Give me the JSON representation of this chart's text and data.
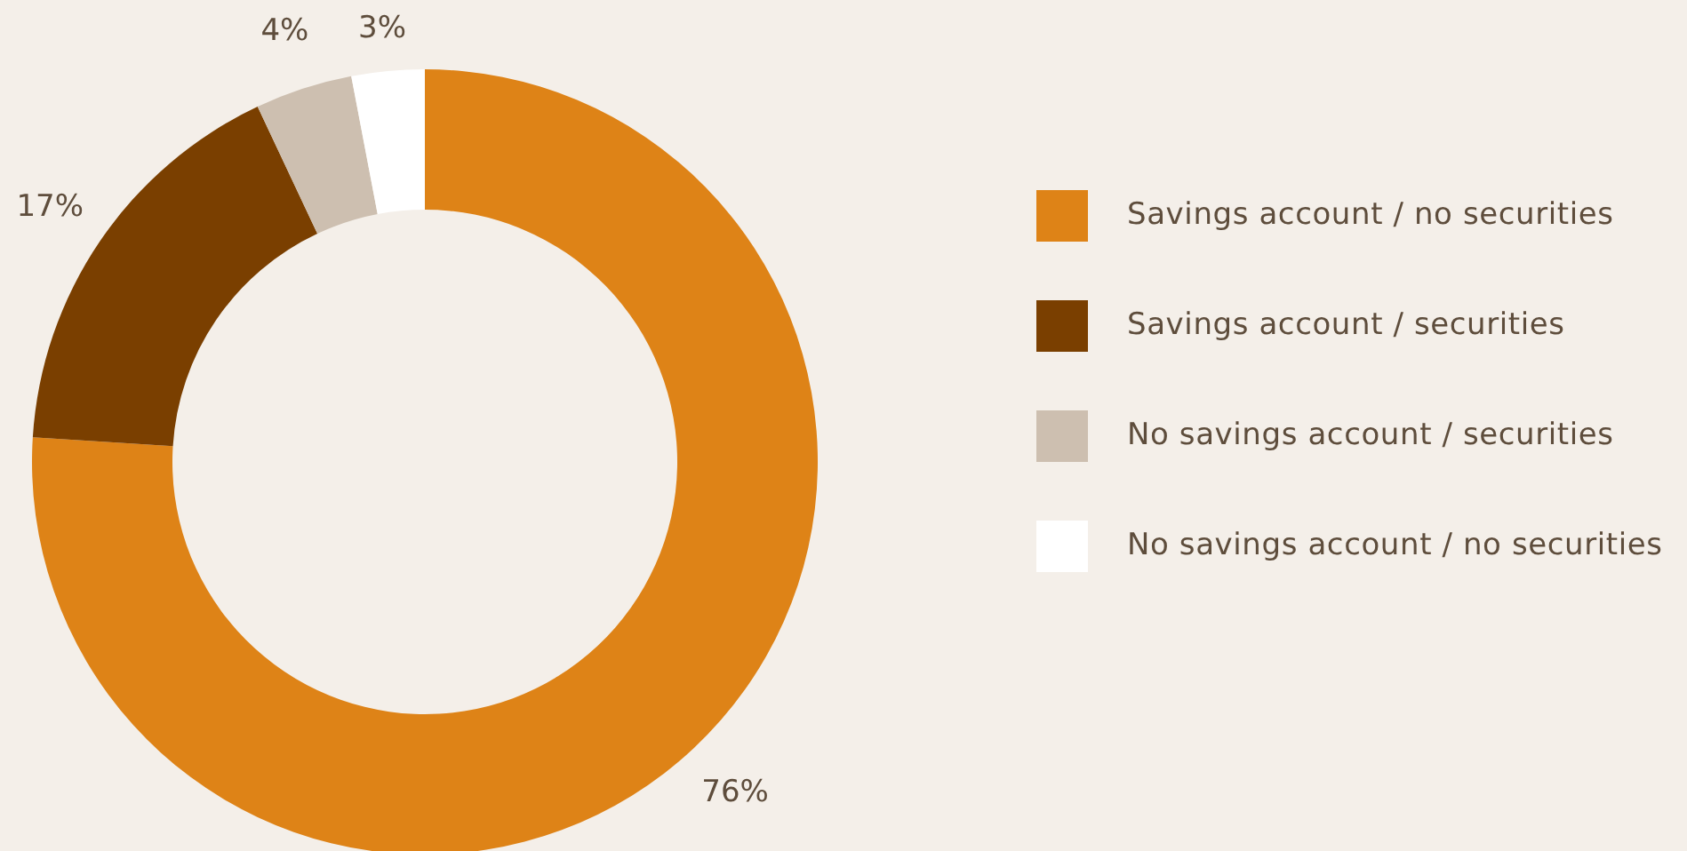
{
  "chart_data": {
    "type": "donut",
    "categories": [
      "Savings account / no securities",
      "Savings account / securities",
      "No savings account / securities",
      "No savings account / no securities"
    ],
    "values": [
      76,
      17,
      4,
      3
    ],
    "value_labels": [
      "76%",
      "17%",
      "4%",
      "3%"
    ],
    "colors": [
      "#de8317",
      "#7a3f00",
      "#cdbfb0",
      "#ffffff"
    ],
    "legend": "right"
  }
}
